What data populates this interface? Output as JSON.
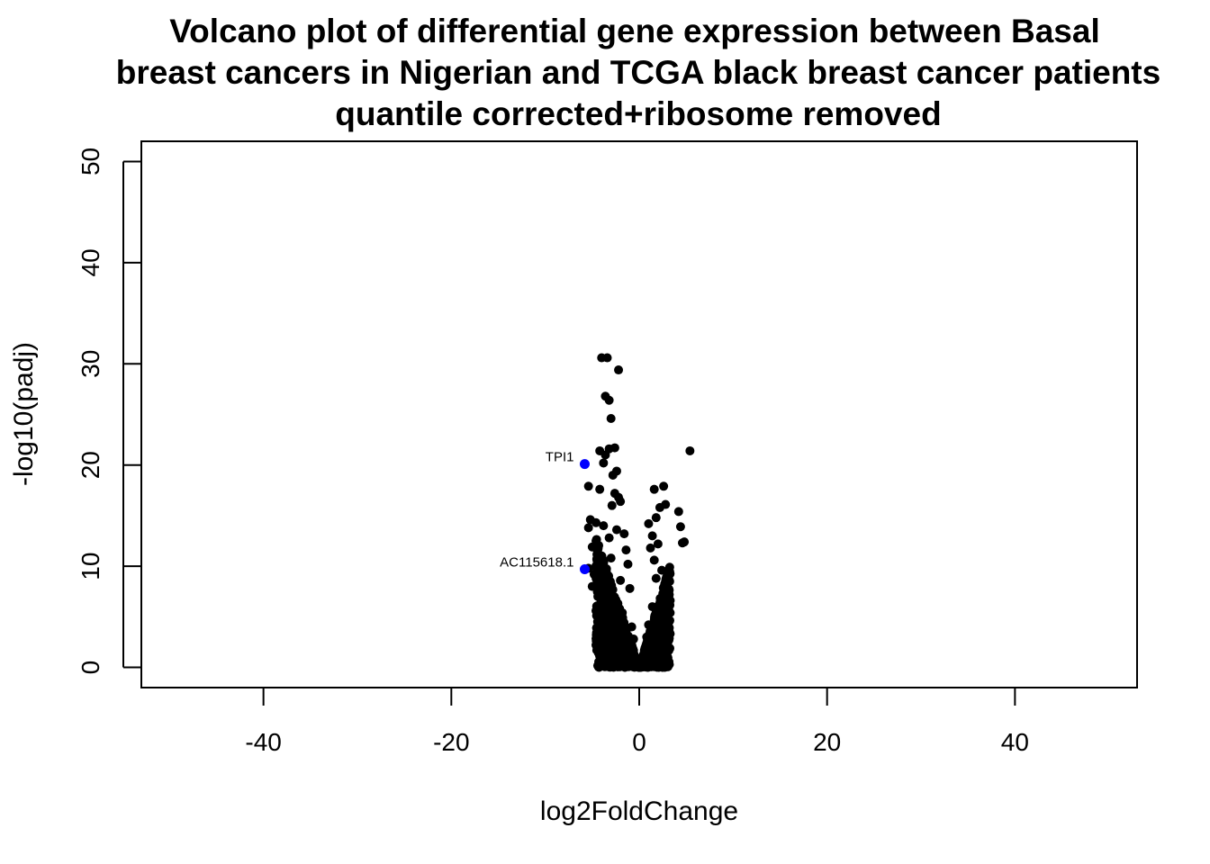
{
  "chart_data": {
    "type": "scatter",
    "title_lines": [
      "Volcano plot of differential gene expression between Basal",
      "breast cancers in Nigerian and TCGA black breast cancer patients",
      "quantile corrected+ribosome removed"
    ],
    "xlabel": "log2FoldChange",
    "ylabel": "-log10(padj)",
    "xlim": [
      -53,
      53
    ],
    "ylim": [
      -2,
      52
    ],
    "x_ticks": [
      -40,
      -20,
      0,
      20,
      40
    ],
    "x_tick_labels": [
      "-40",
      "-20",
      "0",
      "20",
      "40"
    ],
    "y_ticks": [
      0,
      10,
      20,
      30,
      40,
      50
    ],
    "y_tick_labels": [
      "0",
      "10",
      "20",
      "30",
      "40",
      "50"
    ],
    "grid": false,
    "colors": {
      "default": "#000000",
      "highlight": "#0000ff"
    },
    "series": [
      {
        "color": "#000000",
        "points": [
          [
            -4.0,
            30.6
          ],
          [
            -3.4,
            30.6
          ],
          [
            -2.2,
            29.4
          ],
          [
            -3.6,
            26.8
          ],
          [
            -3.2,
            26.4
          ],
          [
            -3.0,
            24.6
          ],
          [
            -3.2,
            21.6
          ],
          [
            -2.6,
            21.7
          ],
          [
            -4.2,
            21.4
          ],
          [
            -3.6,
            21.0
          ],
          [
            -3.8,
            20.2
          ],
          [
            5.4,
            21.4
          ],
          [
            -2.4,
            19.4
          ],
          [
            -2.8,
            19.0
          ],
          [
            -5.4,
            17.9
          ],
          [
            -4.2,
            17.6
          ],
          [
            -2.6,
            17.2
          ],
          [
            -2.2,
            16.8
          ],
          [
            2.6,
            17.9
          ],
          [
            1.6,
            17.6
          ],
          [
            -2.0,
            16.4
          ],
          [
            -2.9,
            16.0
          ],
          [
            2.8,
            16.1
          ],
          [
            2.2,
            15.8
          ],
          [
            4.2,
            15.4
          ],
          [
            1.8,
            14.8
          ],
          [
            -5.2,
            14.6
          ],
          [
            -4.6,
            14.3
          ],
          [
            -3.8,
            14.0
          ],
          [
            1.0,
            14.2
          ],
          [
            -5.4,
            13.8
          ],
          [
            4.4,
            13.9
          ],
          [
            -2.4,
            13.6
          ],
          [
            -1.6,
            13.2
          ],
          [
            1.4,
            13.0
          ],
          [
            -3.2,
            12.8
          ],
          [
            -4.6,
            12.5
          ],
          [
            4.8,
            12.4
          ],
          [
            4.6,
            12.3
          ],
          [
            2.0,
            12.2
          ],
          [
            -5.0,
            11.9
          ],
          [
            -1.4,
            11.6
          ],
          [
            1.2,
            11.8
          ],
          [
            -4.2,
            11.0
          ],
          [
            -3.0,
            10.8
          ],
          [
            1.6,
            10.6
          ],
          [
            -5.4,
            9.8
          ],
          [
            -1.2,
            10.2
          ],
          [
            2.4,
            9.6
          ],
          [
            -4.8,
            9.2
          ],
          [
            -3.4,
            9.0
          ],
          [
            -2.0,
            8.6
          ],
          [
            1.8,
            8.8
          ],
          [
            3.0,
            9.0
          ],
          [
            -5.0,
            8.0
          ],
          [
            -1.0,
            7.8
          ],
          [
            2.8,
            7.6
          ],
          [
            -4.4,
            7.0
          ],
          [
            -2.6,
            6.8
          ],
          [
            3.2,
            7.2
          ],
          [
            -3.8,
            6.2
          ],
          [
            1.4,
            6.0
          ],
          [
            2.6,
            6.4
          ],
          [
            -4.6,
            5.6
          ],
          [
            -1.8,
            5.4
          ],
          [
            3.0,
            5.6
          ],
          [
            -4.2,
            4.8
          ],
          [
            2.2,
            4.6
          ],
          [
            -3.6,
            4.2
          ],
          [
            -0.8,
            4.0
          ],
          [
            1.0,
            4.2
          ],
          [
            -4.4,
            3.4
          ],
          [
            2.8,
            3.6
          ],
          [
            -3.2,
            3.0
          ],
          [
            -0.6,
            2.8
          ],
          [
            0.8,
            3.0
          ],
          [
            -4.6,
            2.2
          ],
          [
            2.6,
            2.4
          ],
          [
            -2.8,
            2.0
          ],
          [
            -1.4,
            1.6
          ],
          [
            1.6,
            1.8
          ],
          [
            -3.0,
            1.2
          ],
          [
            2.0,
            1.0
          ],
          [
            -0.4,
            0.6
          ],
          [
            0.6,
            0.8
          ],
          [
            -2.0,
            0.6
          ],
          [
            1.2,
            0.4
          ],
          [
            -0.2,
            0.2
          ],
          [
            0.2,
            0.1
          ],
          [
            0.0,
            0.0
          ],
          [
            -1.0,
            0.3
          ],
          [
            1.8,
            0.5
          ],
          [
            -2.4,
            0.8
          ],
          [
            2.4,
            0.9
          ],
          [
            -3.4,
            1.6
          ],
          [
            3.2,
            1.8
          ],
          [
            -1.6,
            3.2
          ],
          [
            1.6,
            3.4
          ],
          [
            -2.2,
            4.4
          ],
          [
            2.0,
            5.0
          ]
        ]
      },
      {
        "color": "#0000ff",
        "points": [
          {
            "label": "TPI1",
            "x": -5.8,
            "y": 20.1
          },
          {
            "label": "AC115618.1",
            "x": -5.8,
            "y": 9.7
          }
        ]
      }
    ]
  }
}
